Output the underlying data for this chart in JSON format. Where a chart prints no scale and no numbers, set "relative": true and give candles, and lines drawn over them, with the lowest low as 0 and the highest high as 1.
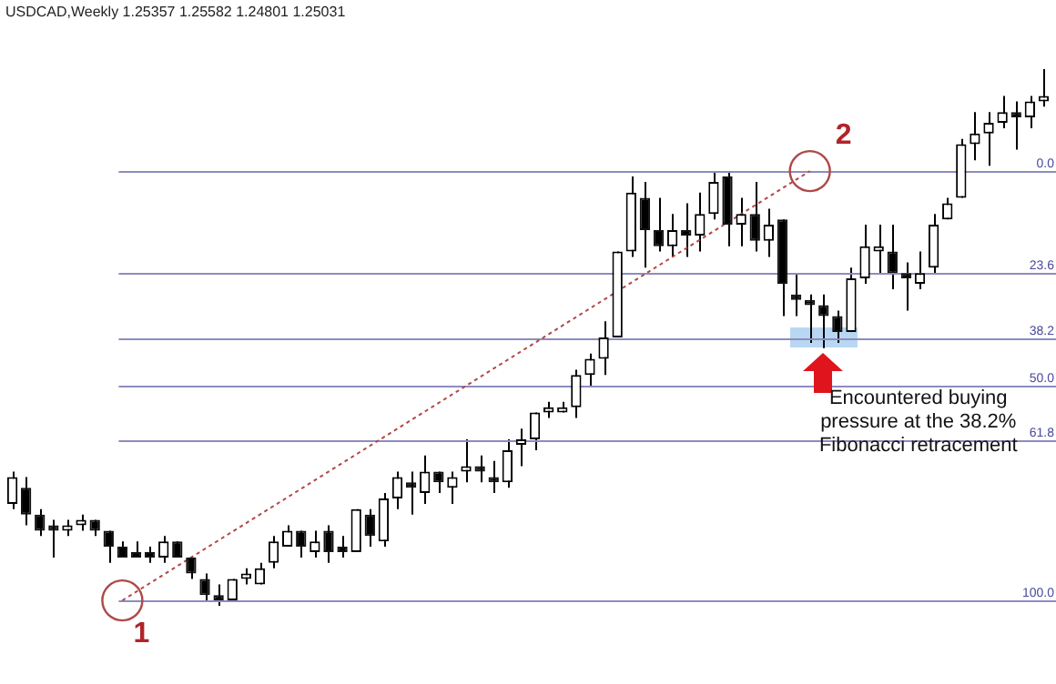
{
  "chart_data": {
    "type": "candlestick",
    "title": "USDCAD,Weekly 1.25357 1.25582 1.24801 1.25031",
    "relative": true,
    "legend": false,
    "categories": [
      null,
      null,
      null,
      null,
      null,
      null,
      null,
      null,
      null,
      null,
      null,
      null,
      null,
      null,
      null,
      null,
      null,
      null,
      null,
      null,
      null,
      null,
      null,
      null,
      null,
      null,
      null,
      null,
      null,
      null,
      null,
      null,
      null,
      null,
      null,
      null,
      null,
      null,
      null,
      null,
      null,
      null,
      null,
      null,
      null,
      null,
      null,
      null,
      null,
      null,
      null,
      null,
      null,
      null,
      null,
      null,
      null,
      null,
      null,
      null,
      null,
      null,
      null,
      null,
      null,
      null,
      null,
      null,
      null,
      null,
      null,
      null,
      null,
      null,
      null,
      null
    ],
    "ohlc": [
      [
        0.19,
        0.25,
        0.18,
        0.24
      ],
      [
        0.22,
        0.24,
        0.15,
        0.17
      ],
      [
        0.17,
        0.18,
        0.13,
        0.14
      ],
      [
        0.15,
        0.16,
        0.09,
        0.14
      ],
      [
        0.14,
        0.16,
        0.13,
        0.15
      ],
      [
        0.15,
        0.17,
        0.14,
        0.16
      ],
      [
        0.16,
        0.16,
        0.13,
        0.14
      ],
      [
        0.14,
        0.14,
        0.08,
        0.11
      ],
      [
        0.11,
        0.12,
        0.09,
        0.09
      ],
      [
        0.1,
        0.12,
        0.09,
        0.09
      ],
      [
        0.1,
        0.11,
        0.08,
        0.09
      ],
      [
        0.09,
        0.13,
        0.08,
        0.12
      ],
      [
        0.12,
        0.12,
        0.09,
        0.09
      ],
      [
        0.09,
        0.09,
        0.05,
        0.06
      ],
      [
        0.05,
        0.06,
        0.01,
        0.02
      ],
      [
        0.02,
        0.04,
        0,
        0.01
      ],
      [
        0.01,
        0.05,
        0.01,
        0.05
      ],
      [
        0.05,
        0.07,
        0.04,
        0.06
      ],
      [
        0.04,
        0.08,
        0.04,
        0.07
      ],
      [
        0.08,
        0.13,
        0.07,
        0.12
      ],
      [
        0.11,
        0.15,
        0.11,
        0.14
      ],
      [
        0.14,
        0.14,
        0.09,
        0.11
      ],
      [
        0.1,
        0.14,
        0.09,
        0.12
      ],
      [
        0.14,
        0.15,
        0.08,
        0.1
      ],
      [
        0.11,
        0.13,
        0.09,
        0.1
      ],
      [
        0.1,
        0.18,
        0.1,
        0.18
      ],
      [
        0.17,
        0.18,
        0.11,
        0.13
      ],
      [
        0.12,
        0.21,
        0.11,
        0.2
      ],
      [
        0.2,
        0.25,
        0.18,
        0.24
      ],
      [
        0.23,
        0.25,
        0.17,
        0.22
      ],
      [
        0.21,
        0.28,
        0.19,
        0.25
      ],
      [
        0.25,
        0.25,
        0.21,
        0.23
      ],
      [
        0.22,
        0.25,
        0.19,
        0.24
      ],
      [
        0.25,
        0.31,
        0.23,
        0.26
      ],
      [
        0.26,
        0.28,
        0.23,
        0.25
      ],
      [
        0.24,
        0.27,
        0.21,
        0.23
      ],
      [
        0.23,
        0.31,
        0.22,
        0.29
      ],
      [
        0.3,
        0.33,
        0.26,
        0.31
      ],
      [
        0.31,
        0.36,
        0.29,
        0.36
      ],
      [
        0.36,
        0.38,
        0.35,
        0.37
      ],
      [
        0.36,
        0.38,
        0.36,
        0.37
      ],
      [
        0.37,
        0.44,
        0.35,
        0.43
      ],
      [
        0.43,
        0.47,
        0.41,
        0.46
      ],
      [
        0.46,
        0.53,
        0.43,
        0.5
      ],
      [
        0.5,
        0.66,
        0.5,
        0.66
      ],
      [
        0.66,
        0.8,
        0.65,
        0.77
      ],
      [
        0.76,
        0.79,
        0.63,
        0.7
      ],
      [
        0.7,
        0.76,
        0.66,
        0.67
      ],
      [
        0.67,
        0.73,
        0.65,
        0.7
      ],
      [
        0.7,
        0.75,
        0.65,
        0.69
      ],
      [
        0.69,
        0.77,
        0.66,
        0.73
      ],
      [
        0.73,
        0.81,
        0.72,
        0.79
      ],
      [
        0.8,
        0.81,
        0.67,
        0.71
      ],
      [
        0.71,
        0.76,
        0.67,
        0.73
      ],
      [
        0.73,
        0.79,
        0.66,
        0.68
      ],
      [
        0.68,
        0.74,
        0.65,
        0.71
      ],
      [
        0.72,
        0.72,
        0.54,
        0.6
      ],
      [
        0.58,
        0.62,
        0.54,
        0.57
      ],
      [
        0.57,
        0.58,
        0.49,
        0.56
      ],
      [
        0.56,
        0.58,
        0.48,
        0.54
      ],
      [
        0.54,
        0.55,
        0.49,
        0.51
      ],
      [
        0.51,
        0.63,
        0.51,
        0.61
      ],
      [
        0.61,
        0.71,
        0.6,
        0.67
      ],
      [
        0.66,
        0.71,
        0.62,
        0.67
      ],
      [
        0.66,
        0.71,
        0.59,
        0.62
      ],
      [
        0.62,
        0.64,
        0.55,
        0.61
      ],
      [
        0.6,
        0.66,
        0.59,
        0.62
      ],
      [
        0.63,
        0.73,
        0.62,
        0.71
      ],
      [
        0.72,
        0.76,
        0.72,
        0.75
      ],
      [
        0.76,
        0.87,
        0.76,
        0.86
      ],
      [
        0.86,
        0.92,
        0.83,
        0.88
      ],
      [
        0.88,
        0.92,
        0.82,
        0.9
      ],
      [
        0.9,
        0.95,
        0.89,
        0.92
      ],
      [
        0.92,
        0.94,
        0.85,
        0.91
      ],
      [
        0.91,
        0.95,
        0.89,
        0.94
      ],
      [
        0.94,
        1.0,
        0.93,
        0.95
      ]
    ],
    "series": [
      {
        "type": "line",
        "color": "#b04848",
        "line_style": "dotted",
        "marker": "circle",
        "values": [
          null,
          null,
          null,
          null,
          null,
          null,
          null,
          null,
          0.01,
          null,
          null,
          null,
          null,
          null,
          null,
          null,
          null,
          null,
          null,
          null,
          null,
          null,
          null,
          null,
          null,
          null,
          null,
          null,
          null,
          null,
          null,
          null,
          null,
          null,
          null,
          null,
          null,
          null,
          null,
          null,
          null,
          null,
          null,
          null,
          null,
          null,
          null,
          null,
          null,
          null,
          null,
          null,
          null,
          null,
          null,
          null,
          null,
          null,
          0.81,
          null,
          null,
          null,
          null,
          null,
          null,
          null,
          null,
          null,
          null,
          null,
          null,
          null,
          null,
          null,
          null,
          null
        ]
      }
    ],
    "ref_lines": [
      {
        "axis": "y",
        "value": 0.81,
        "color": "#8c8cc0"
      },
      {
        "axis": "y",
        "value": 0.62,
        "color": "#8c8cc0"
      },
      {
        "axis": "y",
        "value": 0.5,
        "color": "#8c8cc0"
      },
      {
        "axis": "y",
        "value": 0.41,
        "color": "#8c8cc0"
      },
      {
        "axis": "y",
        "value": 0.31,
        "color": "#8c8cc0"
      },
      {
        "axis": "y",
        "value": 0.01,
        "color": "#8c8cc0"
      }
    ],
    "annotations": [
      "0.0",
      "23.6",
      "38.2",
      "50.0",
      "61.8",
      "100.0",
      "1",
      "2",
      "Encountered buying pressure at the 38.2% Fibonacci retracement"
    ]
  }
}
